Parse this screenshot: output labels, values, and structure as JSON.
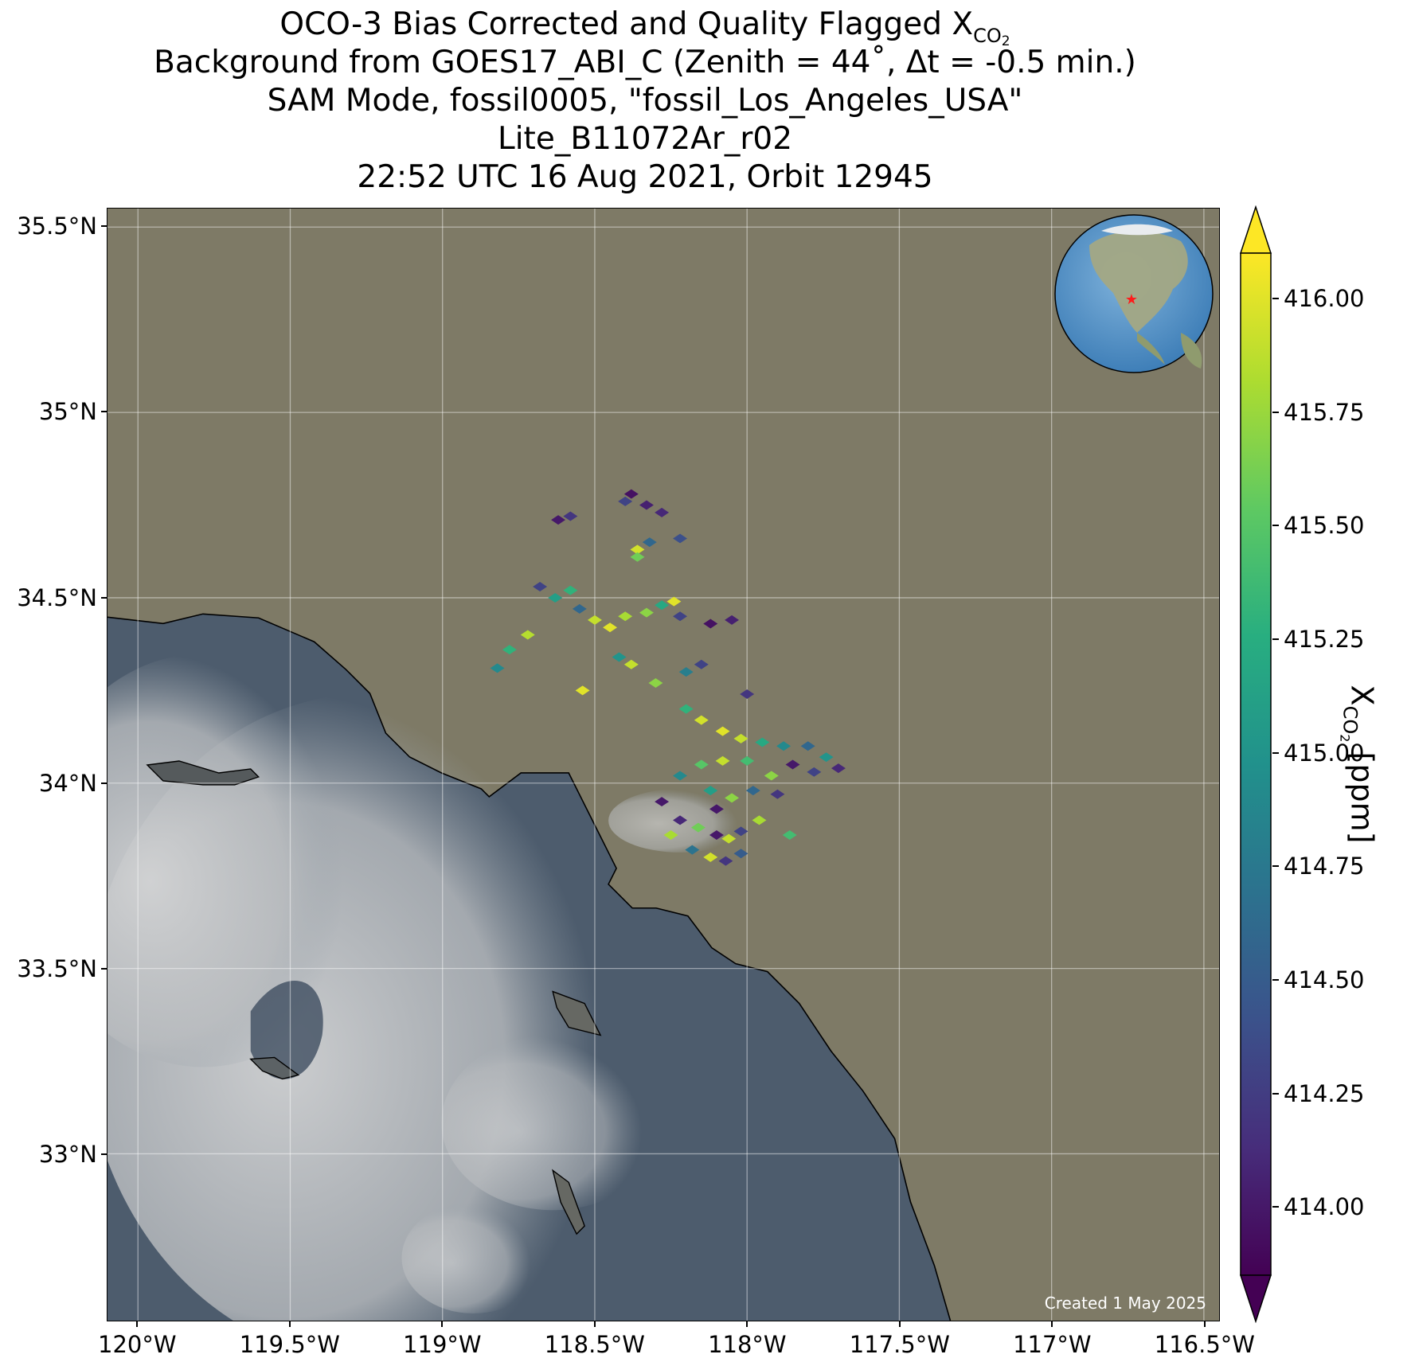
{
  "title": {
    "line1_prefix": "OCO-3 Bias Corrected and Quality Flagged X",
    "line1_subscript": "CO",
    "line1_subsub": "2",
    "line2": "Background from GOES17_ABI_C (Zenith = 44˚, Δt = -0.5 min.)",
    "line3": "SAM Mode, fossil0005, \"fossil_Los_Angeles_USA\"",
    "line4": "Lite_B11072Ar_r02",
    "line5": "22:52 UTC 16 Aug 2021, Orbit 12945"
  },
  "map": {
    "lon_range": [
      -120.1,
      -116.45
    ],
    "lat_range": [
      32.55,
      35.55
    ],
    "lon_ticks": [
      {
        "value": -120.0,
        "label": "120°W"
      },
      {
        "value": -119.5,
        "label": "119.5°W"
      },
      {
        "value": -119.0,
        "label": "119°W"
      },
      {
        "value": -118.5,
        "label": "118.5°W"
      },
      {
        "value": -118.0,
        "label": "118°W"
      },
      {
        "value": -117.5,
        "label": "117.5°W"
      },
      {
        "value": -117.0,
        "label": "117°W"
      },
      {
        "value": -116.5,
        "label": "116.5°W"
      }
    ],
    "lat_ticks": [
      {
        "value": 35.5,
        "label": "35.5°N"
      },
      {
        "value": 35.0,
        "label": "35°N"
      },
      {
        "value": 34.5,
        "label": "34.5°N"
      },
      {
        "value": 34.0,
        "label": "34°N"
      },
      {
        "value": 33.5,
        "label": "33.5°N"
      },
      {
        "value": 33.0,
        "label": "33°N"
      }
    ],
    "grid": true,
    "credit": "Created 1 May 2025",
    "colors": {
      "land": "#7d7a68",
      "ocean": "#4a5a6c",
      "cloud": "#c9cacb",
      "coast": "#000000",
      "star": "#ff1a1a"
    }
  },
  "colorbar": {
    "label_prefix": "X",
    "label_sub": "CO",
    "label_subsub": "2",
    "label_suffix": " [ppm]",
    "min": 413.85,
    "max": 416.1,
    "extend": "both",
    "colormap": "viridis",
    "ticks": [
      "414.00",
      "414.25",
      "414.50",
      "414.75",
      "415.00",
      "415.25",
      "415.50",
      "415.75",
      "416.00"
    ]
  },
  "chart_data": {
    "type": "heatmap",
    "x_label": "",
    "y_label": "",
    "samples": [
      {
        "lon": -118.38,
        "lat": 34.78,
        "value": 413.95
      },
      {
        "lon": -118.33,
        "lat": 34.75,
        "value": 414.05
      },
      {
        "lon": -118.28,
        "lat": 34.73,
        "value": 414.1
      },
      {
        "lon": -118.4,
        "lat": 34.76,
        "value": 414.3
      },
      {
        "lon": -118.62,
        "lat": 34.71,
        "value": 414.0
      },
      {
        "lon": -118.58,
        "lat": 34.72,
        "value": 414.2
      },
      {
        "lon": -118.36,
        "lat": 34.63,
        "value": 415.95
      },
      {
        "lon": -118.32,
        "lat": 34.65,
        "value": 414.6
      },
      {
        "lon": -118.22,
        "lat": 34.66,
        "value": 414.4
      },
      {
        "lon": -118.36,
        "lat": 34.61,
        "value": 415.6
      },
      {
        "lon": -118.68,
        "lat": 34.53,
        "value": 414.3
      },
      {
        "lon": -118.63,
        "lat": 34.5,
        "value": 415.1
      },
      {
        "lon": -118.58,
        "lat": 34.52,
        "value": 415.3
      },
      {
        "lon": -118.55,
        "lat": 34.47,
        "value": 414.6
      },
      {
        "lon": -118.5,
        "lat": 34.44,
        "value": 415.9
      },
      {
        "lon": -118.45,
        "lat": 34.42,
        "value": 416.0
      },
      {
        "lon": -118.4,
        "lat": 34.45,
        "value": 415.8
      },
      {
        "lon": -118.33,
        "lat": 34.46,
        "value": 415.7
      },
      {
        "lon": -118.28,
        "lat": 34.48,
        "value": 415.2
      },
      {
        "lon": -118.22,
        "lat": 34.45,
        "value": 414.3
      },
      {
        "lon": -118.12,
        "lat": 34.43,
        "value": 413.95
      },
      {
        "lon": -118.05,
        "lat": 34.44,
        "value": 414.05
      },
      {
        "lon": -118.24,
        "lat": 34.49,
        "value": 416.0
      },
      {
        "lon": -118.72,
        "lat": 34.4,
        "value": 415.85
      },
      {
        "lon": -118.78,
        "lat": 34.36,
        "value": 415.3
      },
      {
        "lon": -118.82,
        "lat": 34.31,
        "value": 414.9
      },
      {
        "lon": -118.42,
        "lat": 34.34,
        "value": 415.0
      },
      {
        "lon": -118.38,
        "lat": 34.32,
        "value": 415.9
      },
      {
        "lon": -118.3,
        "lat": 34.27,
        "value": 415.7
      },
      {
        "lon": -118.2,
        "lat": 34.3,
        "value": 414.8
      },
      {
        "lon": -118.15,
        "lat": 34.32,
        "value": 414.3
      },
      {
        "lon": -118.0,
        "lat": 34.24,
        "value": 414.2
      },
      {
        "lon": -118.54,
        "lat": 34.25,
        "value": 416.0
      },
      {
        "lon": -118.2,
        "lat": 34.2,
        "value": 415.3
      },
      {
        "lon": -118.15,
        "lat": 34.17,
        "value": 415.95
      },
      {
        "lon": -118.08,
        "lat": 34.14,
        "value": 416.0
      },
      {
        "lon": -118.02,
        "lat": 34.12,
        "value": 415.9
      },
      {
        "lon": -117.95,
        "lat": 34.11,
        "value": 415.2
      },
      {
        "lon": -117.88,
        "lat": 34.1,
        "value": 414.9
      },
      {
        "lon": -117.8,
        "lat": 34.1,
        "value": 414.6
      },
      {
        "lon": -117.74,
        "lat": 34.07,
        "value": 415.0
      },
      {
        "lon": -117.7,
        "lat": 34.04,
        "value": 414.1
      },
      {
        "lon": -117.78,
        "lat": 34.03,
        "value": 414.3
      },
      {
        "lon": -117.85,
        "lat": 34.05,
        "value": 414.0
      },
      {
        "lon": -117.92,
        "lat": 34.02,
        "value": 415.7
      },
      {
        "lon": -118.0,
        "lat": 34.06,
        "value": 415.4
      },
      {
        "lon": -118.08,
        "lat": 34.06,
        "value": 415.9
      },
      {
        "lon": -118.15,
        "lat": 34.05,
        "value": 415.5
      },
      {
        "lon": -118.22,
        "lat": 34.02,
        "value": 414.9
      },
      {
        "lon": -118.12,
        "lat": 33.98,
        "value": 415.1
      },
      {
        "lon": -118.05,
        "lat": 33.96,
        "value": 415.7
      },
      {
        "lon": -117.98,
        "lat": 33.98,
        "value": 414.6
      },
      {
        "lon": -117.9,
        "lat": 33.97,
        "value": 414.2
      },
      {
        "lon": -118.28,
        "lat": 33.95,
        "value": 414.0
      },
      {
        "lon": -118.22,
        "lat": 33.9,
        "value": 414.1
      },
      {
        "lon": -118.16,
        "lat": 33.88,
        "value": 415.6
      },
      {
        "lon": -118.1,
        "lat": 33.86,
        "value": 414.0
      },
      {
        "lon": -118.06,
        "lat": 33.85,
        "value": 415.9
      },
      {
        "lon": -118.02,
        "lat": 33.87,
        "value": 414.3
      },
      {
        "lon": -117.96,
        "lat": 33.9,
        "value": 415.8
      },
      {
        "lon": -118.18,
        "lat": 33.82,
        "value": 414.7
      },
      {
        "lon": -118.12,
        "lat": 33.8,
        "value": 415.95
      },
      {
        "lon": -118.07,
        "lat": 33.79,
        "value": 414.2
      },
      {
        "lon": -118.02,
        "lat": 33.81,
        "value": 414.5
      },
      {
        "lon": -117.86,
        "lat": 33.86,
        "value": 415.4
      },
      {
        "lon": -118.25,
        "lat": 33.86,
        "value": 415.8
      },
      {
        "lon": -118.1,
        "lat": 33.93,
        "value": 414.0
      }
    ]
  }
}
